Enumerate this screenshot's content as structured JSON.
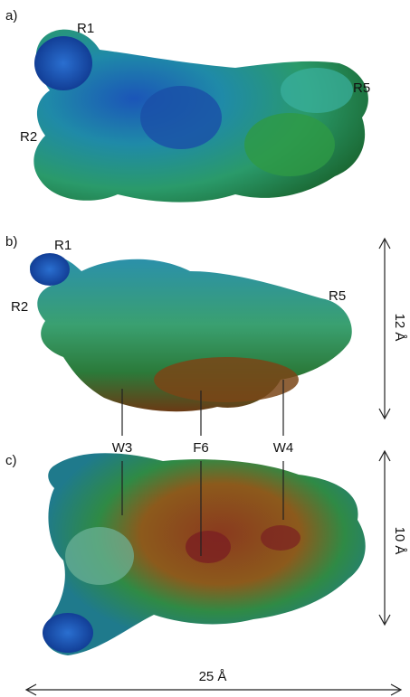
{
  "panels": [
    {
      "label": "a)",
      "residues": [
        "R1",
        "R2",
        "R5"
      ]
    },
    {
      "label": "b)",
      "residues": [
        "R1",
        "R2",
        "R5"
      ]
    },
    {
      "label": "c)"
    }
  ],
  "markers": [
    "W3",
    "F6",
    "W4"
  ],
  "dimensions": {
    "height_b": "12 Å",
    "height_c": "10 Å",
    "width": "25 Å"
  }
}
